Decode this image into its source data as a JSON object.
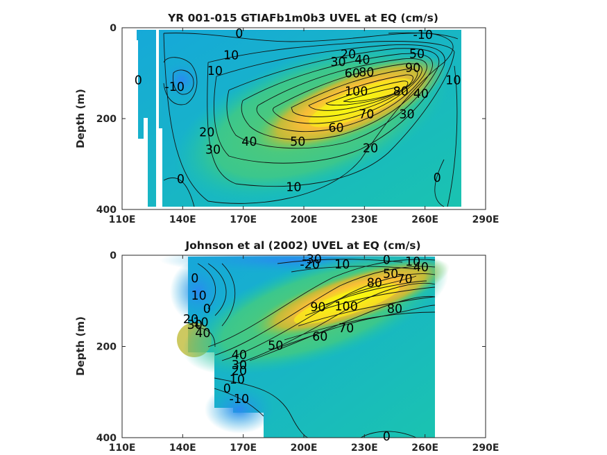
{
  "chart_data": [
    {
      "type": "contour",
      "title": "YR 001-015 GTIAFb1m0b3 UVEL at EQ (cm/s)",
      "ylabel": "Depth (m)",
      "xticks": [
        "110E",
        "140E",
        "170E",
        "200E",
        "230E",
        "260E",
        "290E"
      ],
      "yticks": [
        "0",
        "200",
        "400"
      ],
      "xlim": [
        110,
        290
      ],
      "ylim": [
        400,
        0
      ],
      "colormap": [
        "#3e26a8",
        "#2a6cf2",
        "#16a9d8",
        "#1ac3b0",
        "#5ecb6b",
        "#c0bc3a",
        "#f9bd37",
        "#f4e21f",
        "#f9fb0e"
      ],
      "color_range": [
        -40,
        110
      ],
      "core": {
        "lon": 218,
        "depth": 165,
        "max": 100
      },
      "contour_labels": [
        {
          "text": "0",
          "lon": 168,
          "depth": 12
        },
        {
          "text": "-10",
          "lon": 259,
          "depth": 15
        },
        {
          "text": "10",
          "lon": 164,
          "depth": 60
        },
        {
          "text": "20",
          "lon": 222,
          "depth": 58
        },
        {
          "text": "30",
          "lon": 217,
          "depth": 75
        },
        {
          "text": "40",
          "lon": 229,
          "depth": 70
        },
        {
          "text": "50",
          "lon": 256,
          "depth": 57
        },
        {
          "text": "60",
          "lon": 224,
          "depth": 100
        },
        {
          "text": "80",
          "lon": 231,
          "depth": 98
        },
        {
          "text": "90",
          "lon": 254,
          "depth": 88
        },
        {
          "text": "100",
          "lon": 226,
          "depth": 140
        },
        {
          "text": "80",
          "lon": 248,
          "depth": 140
        },
        {
          "text": "40",
          "lon": 258,
          "depth": 145
        },
        {
          "text": "10",
          "lon": 274,
          "depth": 115
        },
        {
          "text": "0",
          "lon": 118,
          "depth": 115
        },
        {
          "text": "-10",
          "lon": 136,
          "depth": 130
        },
        {
          "text": "10",
          "lon": 156,
          "depth": 95
        },
        {
          "text": "70",
          "lon": 231,
          "depth": 190
        },
        {
          "text": "30",
          "lon": 251,
          "depth": 190
        },
        {
          "text": "60",
          "lon": 216,
          "depth": 220
        },
        {
          "text": "20",
          "lon": 152,
          "depth": 230
        },
        {
          "text": "30",
          "lon": 155,
          "depth": 268
        },
        {
          "text": "40",
          "lon": 173,
          "depth": 250
        },
        {
          "text": "50",
          "lon": 197,
          "depth": 250
        },
        {
          "text": "20",
          "lon": 233,
          "depth": 265
        },
        {
          "text": "0",
          "lon": 139,
          "depth": 333
        },
        {
          "text": "10",
          "lon": 195,
          "depth": 350
        },
        {
          "text": "0",
          "lon": 266,
          "depth": 330
        }
      ]
    },
    {
      "type": "contour",
      "title": "Johnson et al (2002) UVEL at EQ (cm/s)",
      "ylabel": "Depth (m)",
      "xticks": [
        "110E",
        "140E",
        "170E",
        "200E",
        "230E",
        "260E",
        "290E"
      ],
      "yticks": [
        "0",
        "200",
        "400"
      ],
      "xlim": [
        110,
        290
      ],
      "ylim": [
        400,
        0
      ],
      "colormap": [
        "#3e26a8",
        "#2a6cf2",
        "#16a9d8",
        "#1ac3b0",
        "#5ecb6b",
        "#c0bc3a",
        "#f9bd37",
        "#f4e21f",
        "#f9fb0e"
      ],
      "color_range": [
        -40,
        110
      ],
      "core": {
        "lon": 218,
        "depth": 120,
        "max": 100
      },
      "contour_labels": [
        {
          "text": "-30",
          "lon": 204,
          "depth": 8
        },
        {
          "text": "-20",
          "lon": 203,
          "depth": 20
        },
        {
          "text": "10",
          "lon": 219,
          "depth": 20
        },
        {
          "text": "0",
          "lon": 241,
          "depth": 10
        },
        {
          "text": "10",
          "lon": 254,
          "depth": 14
        },
        {
          "text": "50",
          "lon": 243,
          "depth": 40
        },
        {
          "text": "40",
          "lon": 258,
          "depth": 26
        },
        {
          "text": "80",
          "lon": 235,
          "depth": 60
        },
        {
          "text": "70",
          "lon": 250,
          "depth": 52
        },
        {
          "text": "0",
          "lon": 146,
          "depth": 50
        },
        {
          "text": "10",
          "lon": 148,
          "depth": 88
        },
        {
          "text": "0",
          "lon": 152,
          "depth": 117
        },
        {
          "text": "10",
          "lon": 149,
          "depth": 147
        },
        {
          "text": "20",
          "lon": 144,
          "depth": 140
        },
        {
          "text": "30",
          "lon": 146,
          "depth": 152
        },
        {
          "text": "40",
          "lon": 150,
          "depth": 170
        },
        {
          "text": "90",
          "lon": 207,
          "depth": 113
        },
        {
          "text": "100",
          "lon": 221,
          "depth": 112
        },
        {
          "text": "80",
          "lon": 245,
          "depth": 117
        },
        {
          "text": "70",
          "lon": 221,
          "depth": 160
        },
        {
          "text": "60",
          "lon": 208,
          "depth": 178
        },
        {
          "text": "50",
          "lon": 186,
          "depth": 198
        },
        {
          "text": "40",
          "lon": 168,
          "depth": 218
        },
        {
          "text": "30",
          "lon": 168,
          "depth": 240
        },
        {
          "text": "20",
          "lon": 168,
          "depth": 253
        },
        {
          "text": "10",
          "lon": 167,
          "depth": 272
        },
        {
          "text": "0",
          "lon": 162,
          "depth": 292
        },
        {
          "text": "-10",
          "lon": 168,
          "depth": 315
        },
        {
          "text": "0",
          "lon": 241,
          "depth": 397
        }
      ]
    }
  ]
}
